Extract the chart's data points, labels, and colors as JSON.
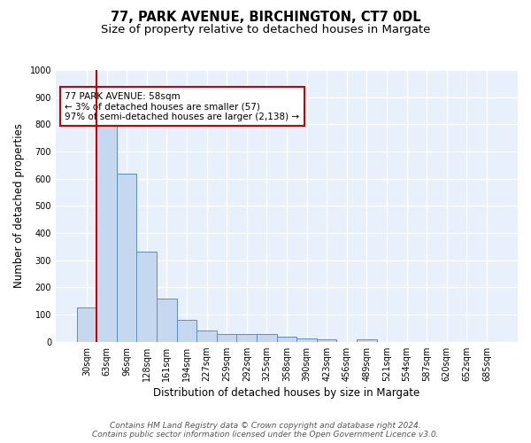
{
  "title_line1": "77, PARK AVENUE, BIRCHINGTON, CT7 0DL",
  "title_line2": "Size of property relative to detached houses in Margate",
  "xlabel": "Distribution of detached houses by size in Margate",
  "ylabel": "Number of detached properties",
  "categories": [
    "30sqm",
    "63sqm",
    "96sqm",
    "128sqm",
    "161sqm",
    "194sqm",
    "227sqm",
    "259sqm",
    "292sqm",
    "325sqm",
    "358sqm",
    "390sqm",
    "423sqm",
    "456sqm",
    "489sqm",
    "521sqm",
    "554sqm",
    "587sqm",
    "620sqm",
    "652sqm",
    "685sqm"
  ],
  "values": [
    125,
    795,
    620,
    330,
    160,
    82,
    40,
    28,
    27,
    27,
    17,
    13,
    10,
    0,
    10,
    0,
    0,
    0,
    0,
    0,
    0
  ],
  "bar_color": "#c5d8f0",
  "bar_edge_color": "#5b8ec4",
  "vline_color": "#cc0000",
  "annotation_text": "77 PARK AVENUE: 58sqm\n← 3% of detached houses are smaller (57)\n97% of semi-detached houses are larger (2,138) →",
  "annotation_box_color": "#ffffff",
  "annotation_box_edge_color": "#cc0000",
  "ylim": [
    0,
    1000
  ],
  "yticks": [
    0,
    100,
    200,
    300,
    400,
    500,
    600,
    700,
    800,
    900,
    1000
  ],
  "bg_color": "#e8f0fb",
  "grid_color": "#ffffff",
  "footer_line1": "Contains HM Land Registry data © Crown copyright and database right 2024.",
  "footer_line2": "Contains public sector information licensed under the Open Government Licence v3.0.",
  "title_fontsize": 10.5,
  "subtitle_fontsize": 9.5,
  "axis_label_fontsize": 8.5,
  "tick_fontsize": 7,
  "annotation_fontsize": 7.5,
  "footer_fontsize": 6.5
}
